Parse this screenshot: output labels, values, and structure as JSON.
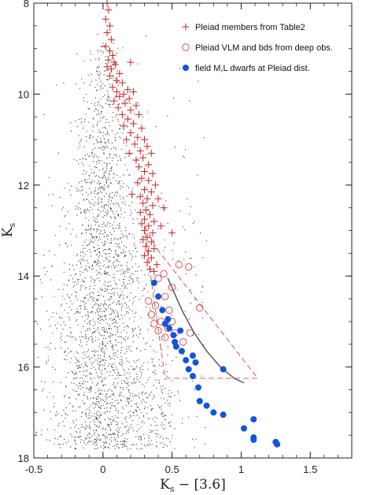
{
  "chart_data": {
    "type": "scatter",
    "title": "",
    "xlabel": "K",
    "xlabel_sub": "s",
    "xlabel_rest": " − [3.6]",
    "ylabel": "K",
    "ylabel_sub": "s",
    "xlim": [
      -0.5,
      1.8
    ],
    "ylim": [
      18,
      8
    ],
    "y_inverted": true,
    "xticks": [
      -0.5,
      0,
      0.5,
      1,
      1.5
    ],
    "xtick_labels": [
      "-0.5",
      "0",
      "0.5",
      "1",
      "1.5"
    ],
    "yticks": [
      8,
      10,
      12,
      14,
      16,
      18
    ],
    "ytick_labels": [
      "8",
      "10",
      "12",
      "14",
      "16",
      "18"
    ],
    "grid": false,
    "legend_position": "top-right",
    "legend": [
      {
        "label": "Pleiad members from Table2",
        "marker": "plus",
        "color": "#cc2222"
      },
      {
        "label": "Pleiad VLM and bds from deep obs.",
        "marker": "open-circle",
        "color": "#e05050"
      },
      {
        "label": "field M,L dwarfs at Pleiad dist.",
        "marker": "filled-circle",
        "color": "#1155dd"
      }
    ],
    "series": [
      {
        "name": "Pleiad members from Table2",
        "marker": "plus",
        "color": "#cc2222",
        "points": [
          [
            0.03,
            8.0
          ],
          [
            0.04,
            8.15
          ],
          [
            0.02,
            8.35
          ],
          [
            0.05,
            8.5
          ],
          [
            0.03,
            8.65
          ],
          [
            0.06,
            8.8
          ],
          [
            0.02,
            8.95
          ],
          [
            0.05,
            9.05
          ],
          [
            0.07,
            9.15
          ],
          [
            0.04,
            9.25
          ],
          [
            0.08,
            9.3
          ],
          [
            0.03,
            9.4
          ],
          [
            0.06,
            9.45
          ],
          [
            0.09,
            9.35
          ],
          [
            0.12,
            9.55
          ],
          [
            0.2,
            9.3
          ],
          [
            0.05,
            9.6
          ],
          [
            0.1,
            9.7
          ],
          [
            0.14,
            9.75
          ],
          [
            0.07,
            9.85
          ],
          [
            0.18,
            9.9
          ],
          [
            0.1,
            9.95
          ],
          [
            0.15,
            10.0
          ],
          [
            0.22,
            9.95
          ],
          [
            0.12,
            10.05
          ],
          [
            0.19,
            10.1
          ],
          [
            0.08,
            10.15
          ],
          [
            0.16,
            10.2
          ],
          [
            0.24,
            10.25
          ],
          [
            0.11,
            10.3
          ],
          [
            0.2,
            10.35
          ],
          [
            0.14,
            10.45
          ],
          [
            0.26,
            10.45
          ],
          [
            0.18,
            10.55
          ],
          [
            0.22,
            10.65
          ],
          [
            0.15,
            10.7
          ],
          [
            0.28,
            10.75
          ],
          [
            0.2,
            10.85
          ],
          [
            0.25,
            10.95
          ],
          [
            0.17,
            11.0
          ],
          [
            0.3,
            11.0
          ],
          [
            0.23,
            11.1
          ],
          [
            0.32,
            11.15
          ],
          [
            0.27,
            11.25
          ],
          [
            0.19,
            11.3
          ],
          [
            0.35,
            11.3
          ],
          [
            0.29,
            11.4
          ],
          [
            0.24,
            11.45
          ],
          [
            0.33,
            11.55
          ],
          [
            0.26,
            11.6
          ],
          [
            0.3,
            11.7
          ],
          [
            0.36,
            11.75
          ],
          [
            0.28,
            11.85
          ],
          [
            0.33,
            11.9
          ],
          [
            0.25,
            11.95
          ],
          [
            0.38,
            12.0
          ],
          [
            0.3,
            12.1
          ],
          [
            0.35,
            12.15
          ],
          [
            0.27,
            12.25
          ],
          [
            0.32,
            12.3
          ],
          [
            0.4,
            12.3
          ],
          [
            0.29,
            12.4
          ],
          [
            0.36,
            12.45
          ],
          [
            0.31,
            12.55
          ],
          [
            0.27,
            12.6
          ],
          [
            0.34,
            12.65
          ],
          [
            0.3,
            12.75
          ],
          [
            0.37,
            12.8
          ],
          [
            0.28,
            12.85
          ],
          [
            0.33,
            12.9
          ],
          [
            0.3,
            13.0
          ],
          [
            0.36,
            13.05
          ],
          [
            0.32,
            13.15
          ],
          [
            0.29,
            13.2
          ],
          [
            0.35,
            13.25
          ],
          [
            0.31,
            13.35
          ],
          [
            0.37,
            13.4
          ],
          [
            0.33,
            13.45
          ],
          [
            0.3,
            13.55
          ],
          [
            0.35,
            13.6
          ],
          [
            0.32,
            13.7
          ],
          [
            0.39,
            13.75
          ],
          [
            0.34,
            13.85
          ],
          [
            0.37,
            13.9
          ],
          [
            0.21,
            12.2
          ],
          [
            0.44,
            12.5
          ],
          [
            0.5,
            13.05
          ],
          [
            0.42,
            12.9
          ]
        ]
      },
      {
        "name": "Pleiad VLM and bds from deep obs.",
        "marker": "open-circle",
        "color": "#e05050",
        "points": [
          [
            0.55,
            13.75
          ],
          [
            0.62,
            13.8
          ],
          [
            0.44,
            13.95
          ],
          [
            0.4,
            14.05
          ],
          [
            0.5,
            14.25
          ],
          [
            0.45,
            14.45
          ],
          [
            0.33,
            14.55
          ],
          [
            0.38,
            14.65
          ],
          [
            0.48,
            14.75
          ],
          [
            0.35,
            14.85
          ],
          [
            0.7,
            14.7
          ],
          [
            0.42,
            15.0
          ],
          [
            0.37,
            15.05
          ],
          [
            0.47,
            15.15
          ],
          [
            0.52,
            15.25
          ],
          [
            0.63,
            15.25
          ],
          [
            0.45,
            15.35
          ],
          [
            0.58,
            15.45
          ],
          [
            0.4,
            15.2
          ],
          [
            0.5,
            15.0
          ]
        ]
      },
      {
        "name": "field M,L dwarfs at Pleiad dist.",
        "marker": "filled-circle",
        "color": "#1155dd",
        "points": [
          [
            0.37,
            14.15
          ],
          [
            0.4,
            14.45
          ],
          [
            0.43,
            14.75
          ],
          [
            0.47,
            14.95
          ],
          [
            0.45,
            15.05
          ],
          [
            0.48,
            15.15
          ],
          [
            0.51,
            15.3
          ],
          [
            0.52,
            15.45
          ],
          [
            0.53,
            15.55
          ],
          [
            0.57,
            15.65
          ],
          [
            0.65,
            15.75
          ],
          [
            0.6,
            15.85
          ],
          [
            0.67,
            15.9
          ],
          [
            0.62,
            16.05
          ],
          [
            0.65,
            16.2
          ],
          [
            0.69,
            16.45
          ],
          [
            0.7,
            16.75
          ],
          [
            0.75,
            16.85
          ],
          [
            0.8,
            17.0
          ],
          [
            0.87,
            17.05
          ],
          [
            0.87,
            16.05
          ],
          [
            1.09,
            17.15
          ],
          [
            1.02,
            17.35
          ],
          [
            1.09,
            17.55
          ],
          [
            1.09,
            17.6
          ],
          [
            1.25,
            17.65
          ],
          [
            1.26,
            17.7
          ],
          [
            0.56,
            15.2
          ]
        ]
      }
    ],
    "field_distribution": {
      "description_points_count": 2600,
      "main_locus_center_x": 0.0,
      "main_locus_spread_x": 0.12,
      "ks_range": [
        8.5,
        17.8
      ],
      "color": "#333333"
    },
    "model_curve": {
      "color": "#444444",
      "points": [
        [
          0.47,
          14.05
        ],
        [
          0.52,
          14.4
        ],
        [
          0.58,
          14.8
        ],
        [
          0.66,
          15.25
        ],
        [
          0.75,
          15.65
        ],
        [
          0.85,
          16.0
        ],
        [
          0.95,
          16.25
        ],
        [
          1.02,
          16.35
        ]
      ]
    },
    "selection_box": {
      "color": "#e06060",
      "dashed": true,
      "points": [
        [
          0.3,
          12.9
        ],
        [
          0.39,
          13.4
        ],
        [
          1.12,
          16.25
        ],
        [
          0.45,
          16.25
        ],
        [
          0.35,
          14.1
        ],
        [
          0.3,
          12.9
        ]
      ]
    }
  }
}
